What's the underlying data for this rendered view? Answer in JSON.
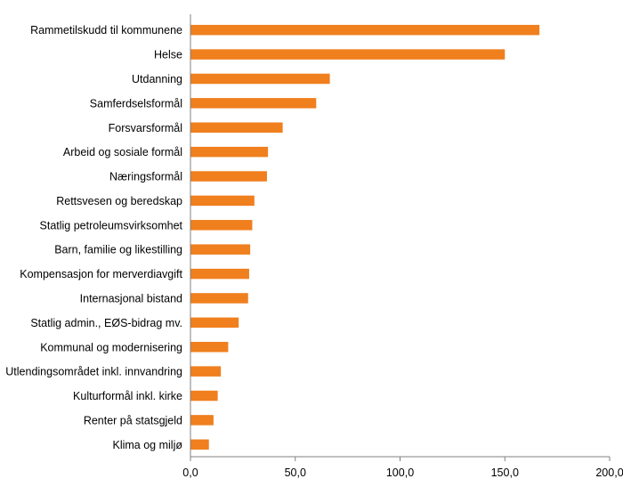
{
  "colors": {
    "bar": "#F07F1E",
    "axis": "#808080",
    "text": "#000000"
  },
  "chart_data": {
    "type": "bar",
    "orientation": "horizontal",
    "title": "",
    "xlabel": "",
    "ylabel": "",
    "xlim": [
      0,
      200
    ],
    "grid": false,
    "legend": "none",
    "categories": [
      "Rammetilskudd til kommunene",
      "Helse",
      "Utdanning",
      "Samferdselsformål",
      "Forsvarsformål",
      "Arbeid og sosiale formål",
      "Næringsformål",
      "Rettsvesen og beredskap",
      "Statlig petroleumsvirksomhet",
      "Barn, familie og likestilling",
      "Kompensasjon for merverdiavgift",
      "Internasjonal bistand",
      "Statlig admin., EØS-bidrag mv.",
      "Kommunal og modernisering",
      "Utlendingsområdet inkl. innvandring",
      "Kulturformål inkl. kirke",
      "Renter på statsgjeld",
      "Klima og miljø"
    ],
    "values": [
      166.5,
      150.0,
      66.5,
      60.0,
      44.0,
      37.0,
      36.5,
      30.5,
      29.5,
      28.5,
      28.0,
      27.5,
      23.0,
      18.0,
      14.5,
      13.0,
      11.0,
      8.8
    ],
    "ticks": [
      {
        "value": 0,
        "label": "0,0"
      },
      {
        "value": 50,
        "label": "50,0"
      },
      {
        "value": 100,
        "label": "100,0"
      },
      {
        "value": 150,
        "label": "150,0"
      },
      {
        "value": 200,
        "label": "200,0"
      }
    ]
  }
}
